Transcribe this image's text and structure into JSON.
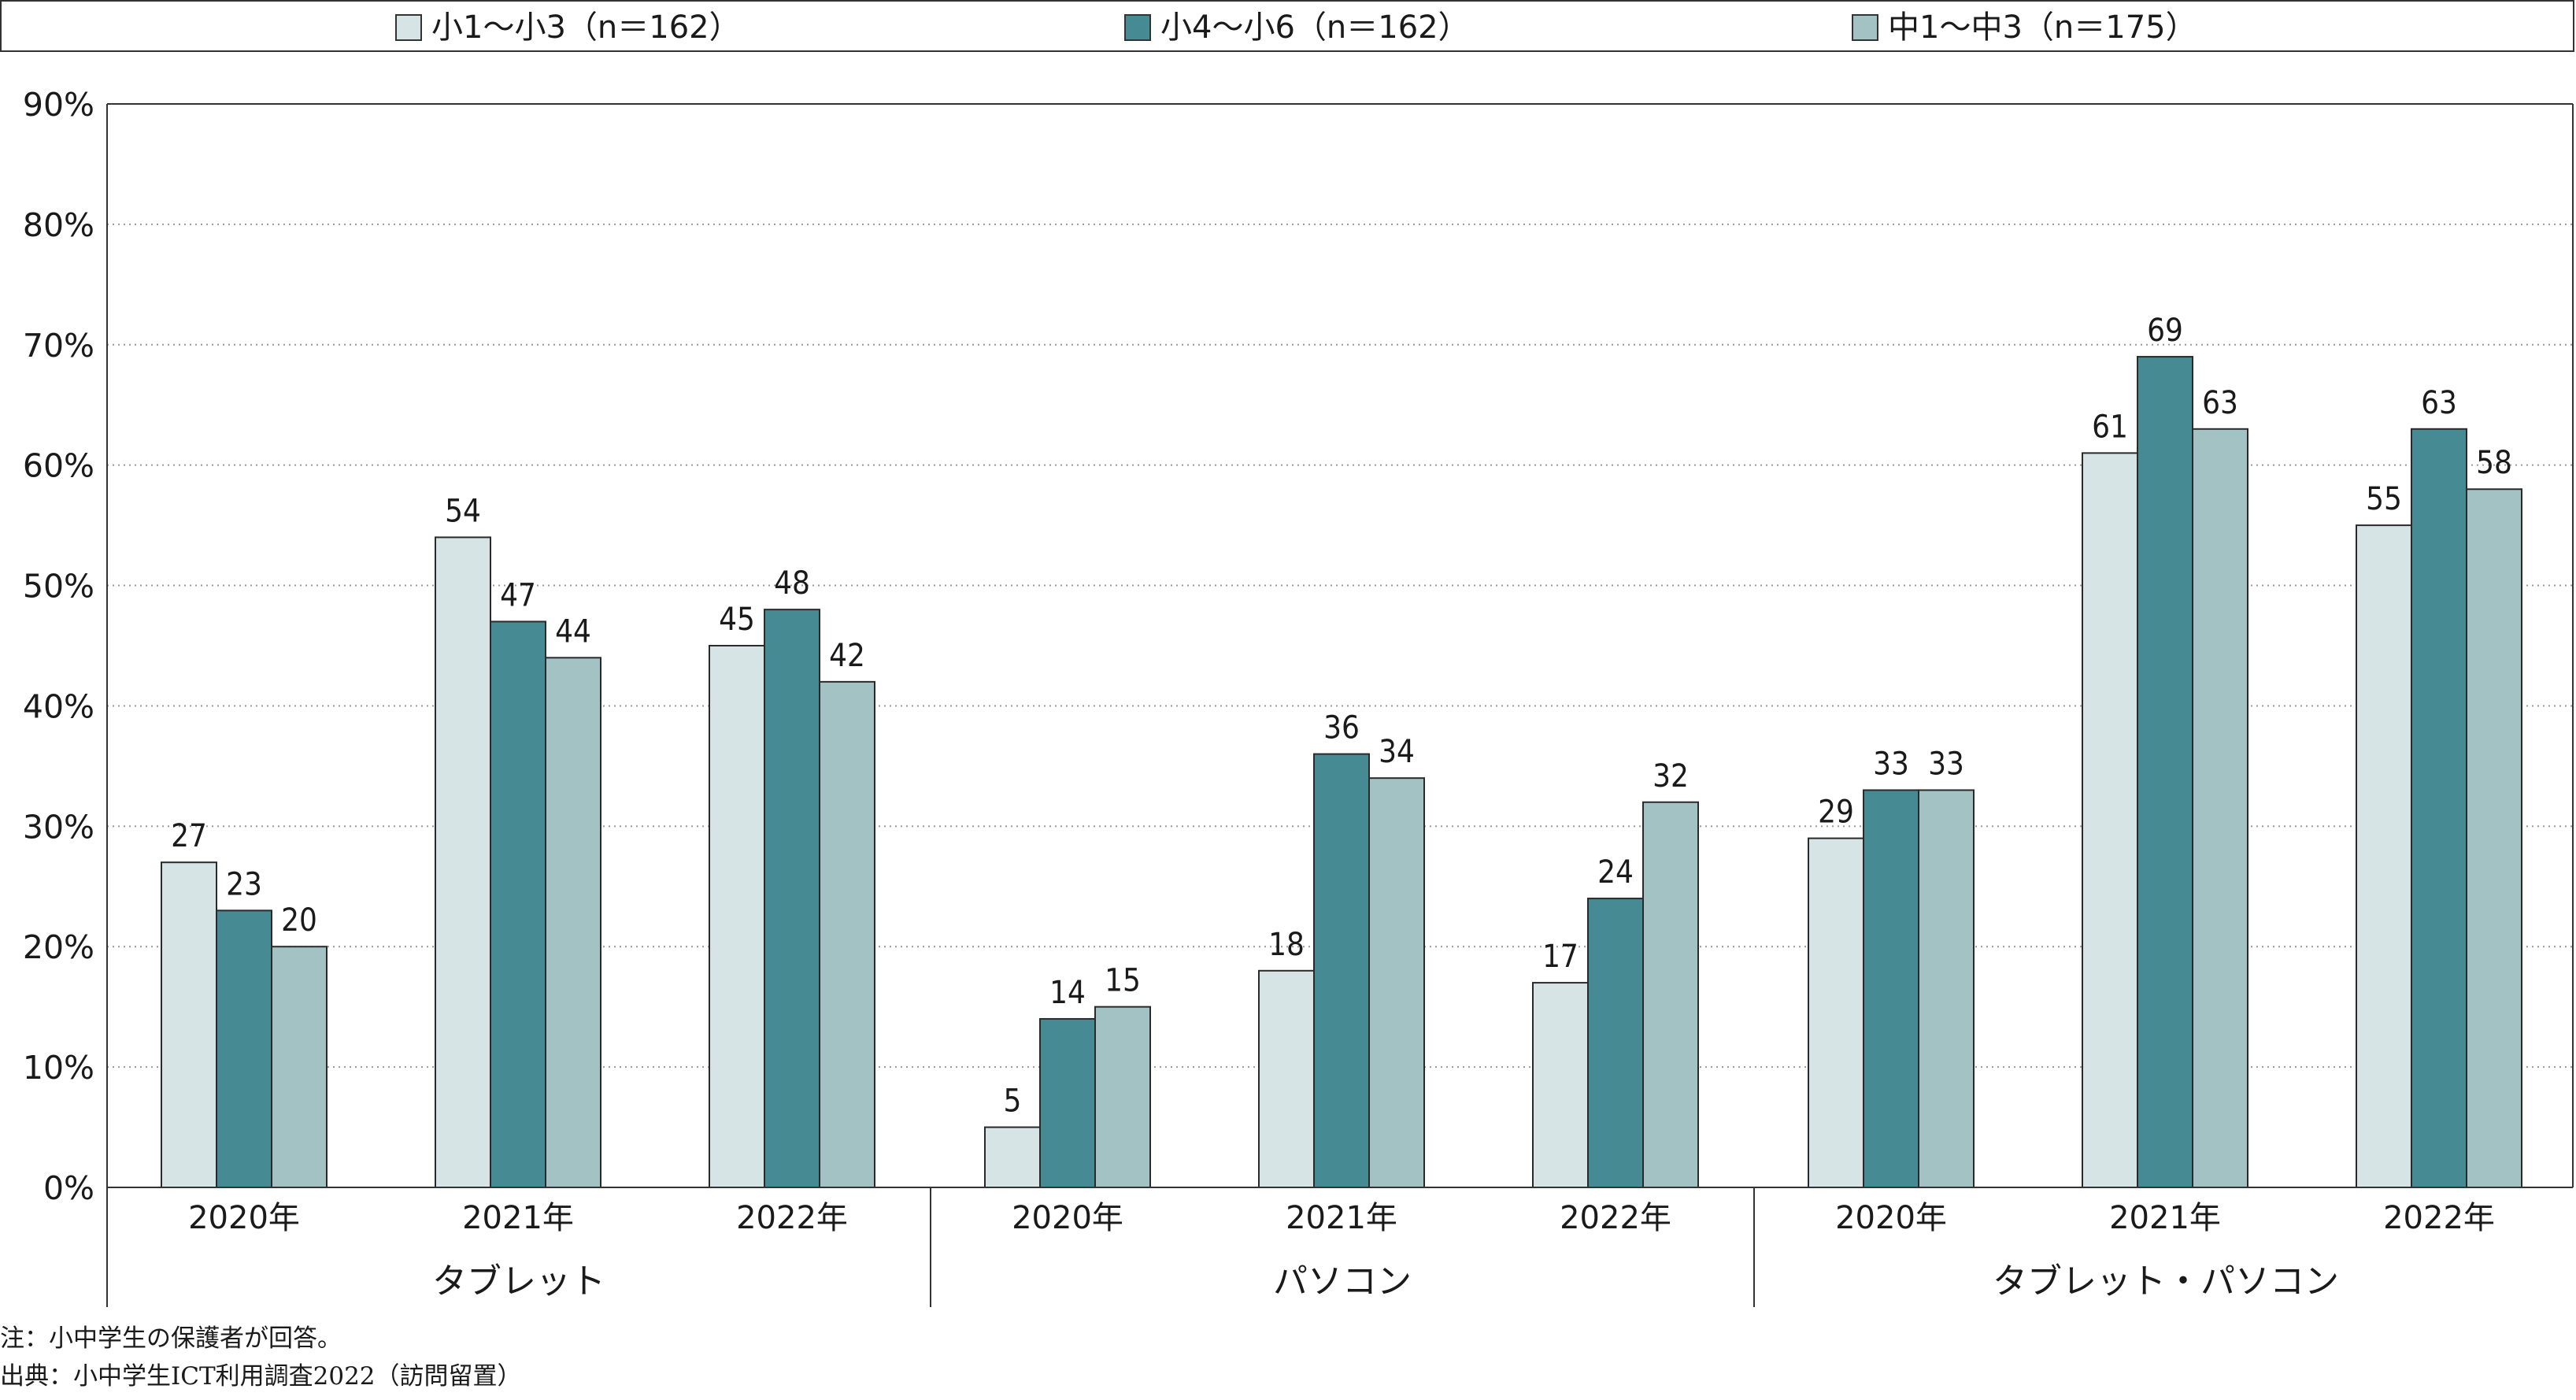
{
  "legend": {
    "items": [
      {
        "label": "小1～小3（n＝162）",
        "color": "#d6e4e5"
      },
      {
        "label": "小4～小6（n＝162）",
        "color": "#468a93"
      },
      {
        "label": "中1～中3（n＝175）",
        "color": "#a2c2c4"
      }
    ]
  },
  "chart_data": {
    "type": "bar",
    "ylim": [
      0,
      90
    ],
    "yticks": [
      "0%",
      "10%",
      "20%",
      "30%",
      "40%",
      "50%",
      "60%",
      "70%",
      "80%",
      "90%"
    ],
    "grid": true,
    "legend_position": "top",
    "groups": [
      "タブレット",
      "パソコン",
      "タブレット・パソコン"
    ],
    "categories": [
      "2020年",
      "2021年",
      "2022年"
    ],
    "series": [
      {
        "name": "小1～小3（n＝162）",
        "color": "#d6e4e5",
        "values": [
          [
            27,
            54,
            45
          ],
          [
            5,
            18,
            17
          ],
          [
            29,
            61,
            55
          ]
        ],
        "labels": [
          [
            "27",
            "54",
            "45"
          ],
          [
            "5",
            "18",
            "17"
          ],
          [
            "29",
            "61",
            "55"
          ]
        ]
      },
      {
        "name": "小4～小6（n＝162）",
        "color": "#468a93",
        "values": [
          [
            23,
            47,
            48
          ],
          [
            14,
            36,
            24
          ],
          [
            33,
            69,
            63
          ]
        ],
        "labels": [
          [
            "23",
            "47",
            "48"
          ],
          [
            "14",
            "36",
            "24"
          ],
          [
            "33",
            "69",
            "63"
          ]
        ]
      },
      {
        "name": "中1～中3（n＝175）",
        "color": "#a2c2c4",
        "values": [
          [
            20,
            44,
            42
          ],
          [
            15,
            34,
            32
          ],
          [
            33,
            63,
            58
          ]
        ],
        "labels": [
          [
            "20",
            "44",
            "42"
          ],
          [
            "15",
            "34",
            "32"
          ],
          [
            "33",
            "63",
            "58"
          ]
        ]
      }
    ]
  },
  "footnotes": {
    "note": "注：小中学生の保護者が回答。",
    "source": "出典：小中学生ICT利用調査2022（訪問留置）"
  }
}
